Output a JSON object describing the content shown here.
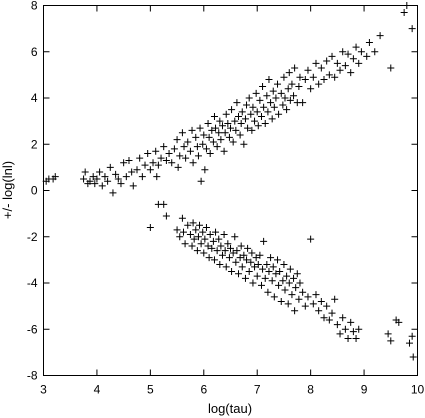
{
  "chart_data": {
    "type": "scatter",
    "title": "",
    "xlabel": "log(tau)",
    "ylabel": "+/- log(lnl)",
    "xlim": [
      3,
      10
    ],
    "ylim": [
      -8,
      8
    ],
    "xticks": [
      "3",
      "4",
      "5",
      "6",
      "7",
      "8",
      "9",
      "10"
    ],
    "yticks": [
      "-8",
      "-6",
      "-4",
      "-2",
      "0",
      "2",
      "4",
      "6",
      "8"
    ],
    "grid": false,
    "marker": "plus",
    "series": [
      {
        "points": [
          [
            3.05,
            0.4
          ],
          [
            3.1,
            0.5
          ],
          [
            3.18,
            0.5
          ],
          [
            3.22,
            0.6
          ],
          [
            3.75,
            0.5
          ],
          [
            3.78,
            0.8
          ],
          [
            3.83,
            0.3
          ],
          [
            3.87,
            0.4
          ],
          [
            3.93,
            0.6
          ],
          [
            3.96,
            0.3
          ],
          [
            4.0,
            0.5
          ],
          [
            4.05,
            0.8
          ],
          [
            4.1,
            0.2
          ],
          [
            4.15,
            0.6
          ],
          [
            4.2,
            0.4
          ],
          [
            4.25,
            1.0
          ],
          [
            4.3,
            -0.1
          ],
          [
            4.35,
            0.7
          ],
          [
            4.4,
            0.5
          ],
          [
            4.45,
            0.3
          ],
          [
            4.5,
            1.2
          ],
          [
            4.55,
            0.6
          ],
          [
            4.6,
            1.3
          ],
          [
            4.65,
            0.8
          ],
          [
            4.68,
            0.2
          ],
          [
            4.75,
            0.9
          ],
          [
            4.8,
            1.4
          ],
          [
            4.85,
            0.6
          ],
          [
            4.9,
            1.1
          ],
          [
            4.95,
            1.6
          ],
          [
            5.0,
            0.9
          ],
          [
            5.05,
            1.2
          ],
          [
            5.1,
            1.7
          ],
          [
            5.12,
            0.6
          ],
          [
            5.15,
            1.1
          ],
          [
            5.2,
            1.4
          ],
          [
            5.25,
            1.9
          ],
          [
            5.3,
            1.3
          ],
          [
            5.35,
            1.6
          ],
          [
            5.4,
            1.2
          ],
          [
            5.45,
            1.8
          ],
          [
            5.5,
            2.2
          ],
          [
            5.52,
            1.0
          ],
          [
            5.55,
            1.5
          ],
          [
            5.6,
            2.5
          ],
          [
            5.63,
            1.9
          ],
          [
            5.66,
            1.4
          ],
          [
            5.7,
            2.1
          ],
          [
            5.75,
            1.7
          ],
          [
            5.78,
            2.6
          ],
          [
            5.8,
            1.2
          ],
          [
            5.85,
            2.3
          ],
          [
            5.88,
            1.9
          ],
          [
            5.9,
            1.5
          ],
          [
            5.93,
            2.7
          ],
          [
            5.95,
            0.4
          ],
          [
            5.98,
            2.0
          ],
          [
            6.0,
            2.4
          ],
          [
            6.02,
            0.9
          ],
          [
            6.05,
            1.8
          ],
          [
            6.08,
            2.9
          ],
          [
            6.1,
            2.3
          ],
          [
            6.12,
            1.6
          ],
          [
            6.15,
            2.6
          ],
          [
            6.18,
            2.1
          ],
          [
            6.2,
            3.2
          ],
          [
            6.22,
            2.7
          ],
          [
            6.25,
            1.9
          ],
          [
            6.28,
            2.5
          ],
          [
            6.3,
            3.0
          ],
          [
            6.32,
            2.2
          ],
          [
            6.35,
            2.8
          ],
          [
            6.38,
            1.7
          ],
          [
            6.4,
            2.5
          ],
          [
            6.42,
            3.3
          ],
          [
            6.45,
            2.9
          ],
          [
            6.48,
            2.3
          ],
          [
            6.5,
            2.7
          ],
          [
            6.52,
            3.5
          ],
          [
            6.55,
            2.1
          ],
          [
            6.58,
            3.0
          ],
          [
            6.6,
            2.6
          ],
          [
            6.62,
            3.8
          ],
          [
            6.65,
            3.2
          ],
          [
            6.68,
            2.4
          ],
          [
            6.7,
            2.9
          ],
          [
            6.72,
            3.4
          ],
          [
            6.75,
            2.0
          ],
          [
            6.78,
            3.1
          ],
          [
            6.8,
            3.7
          ],
          [
            6.82,
            2.7
          ],
          [
            6.85,
            4.0
          ],
          [
            6.88,
            3.3
          ],
          [
            6.9,
            2.6
          ],
          [
            6.92,
            3.6
          ],
          [
            6.95,
            3.0
          ],
          [
            6.98,
            4.2
          ],
          [
            7.0,
            3.4
          ],
          [
            7.02,
            2.8
          ],
          [
            7.05,
            3.9
          ],
          [
            7.08,
            3.2
          ],
          [
            7.1,
            4.5
          ],
          [
            7.12,
            3.6
          ],
          [
            7.15,
            2.9
          ],
          [
            7.18,
            4.1
          ],
          [
            7.2,
            3.4
          ],
          [
            7.22,
            4.8
          ],
          [
            7.25,
            3.8
          ],
          [
            7.28,
            3.1
          ],
          [
            7.3,
            4.3
          ],
          [
            7.32,
            3.6
          ],
          [
            7.35,
            4.0
          ],
          [
            7.38,
            4.6
          ],
          [
            7.4,
            3.3
          ],
          [
            7.45,
            4.2
          ],
          [
            7.48,
            3.7
          ],
          [
            7.5,
            4.9
          ],
          [
            7.52,
            4.0
          ],
          [
            7.55,
            3.5
          ],
          [
            7.58,
            4.4
          ],
          [
            7.6,
            5.1
          ],
          [
            7.62,
            3.9
          ],
          [
            7.65,
            4.6
          ],
          [
            7.68,
            4.1
          ],
          [
            7.7,
            5.3
          ],
          [
            7.75,
            3.8
          ],
          [
            7.78,
            4.5
          ],
          [
            7.8,
            4.9
          ],
          [
            7.85,
            3.8
          ],
          [
            7.9,
            4.8
          ],
          [
            7.95,
            5.2
          ],
          [
            8.0,
            4.4
          ],
          [
            8.05,
            4.9
          ],
          [
            8.1,
            5.5
          ],
          [
            8.15,
            4.6
          ],
          [
            8.2,
            5.3
          ],
          [
            8.25,
            4.8
          ],
          [
            8.3,
            5.6
          ],
          [
            8.35,
            5.0
          ],
          [
            8.4,
            5.8
          ],
          [
            8.45,
            4.9
          ],
          [
            8.5,
            5.5
          ],
          [
            8.55,
            5.2
          ],
          [
            8.6,
            6.0
          ],
          [
            8.65,
            5.4
          ],
          [
            8.7,
            5.9
          ],
          [
            8.75,
            5.1
          ],
          [
            8.8,
            5.7
          ],
          [
            8.85,
            6.2
          ],
          [
            8.9,
            5.5
          ],
          [
            8.95,
            6.0
          ],
          [
            9.05,
            5.8
          ],
          [
            9.1,
            6.4
          ],
          [
            9.2,
            6.0
          ],
          [
            9.3,
            6.7
          ],
          [
            9.5,
            5.3
          ],
          [
            9.75,
            7.7
          ],
          [
            9.8,
            8.0
          ],
          [
            9.9,
            7.0
          ]
        ]
      },
      {
        "points": [
          [
            5.0,
            -1.6
          ],
          [
            5.15,
            -0.6
          ],
          [
            5.25,
            -0.6
          ],
          [
            5.3,
            -1.1
          ],
          [
            5.5,
            -1.7
          ],
          [
            5.55,
            -2.0
          ],
          [
            5.6,
            -1.2
          ],
          [
            5.62,
            -1.8
          ],
          [
            5.65,
            -2.3
          ],
          [
            5.7,
            -1.5
          ],
          [
            5.75,
            -1.9
          ],
          [
            5.78,
            -2.4
          ],
          [
            5.8,
            -1.4
          ],
          [
            5.82,
            -2.1
          ],
          [
            5.85,
            -1.7
          ],
          [
            5.88,
            -2.6
          ],
          [
            5.9,
            -2.0
          ],
          [
            5.92,
            -1.5
          ],
          [
            5.95,
            -2.3
          ],
          [
            5.98,
            -1.8
          ],
          [
            6.0,
            -2.7
          ],
          [
            6.02,
            -2.1
          ],
          [
            6.05,
            -1.6
          ],
          [
            6.08,
            -2.4
          ],
          [
            6.1,
            -2.9
          ],
          [
            6.12,
            -1.9
          ],
          [
            6.15,
            -2.5
          ],
          [
            6.18,
            -2.2
          ],
          [
            6.2,
            -3.0
          ],
          [
            6.22,
            -1.8
          ],
          [
            6.25,
            -2.6
          ],
          [
            6.28,
            -2.1
          ],
          [
            6.3,
            -3.2
          ],
          [
            6.32,
            -2.4
          ],
          [
            6.35,
            -2.8
          ],
          [
            6.38,
            -1.9
          ],
          [
            6.4,
            -2.6
          ],
          [
            6.42,
            -3.3
          ],
          [
            6.45,
            -2.3
          ],
          [
            6.48,
            -2.9
          ],
          [
            6.5,
            -2.5
          ],
          [
            6.52,
            -3.5
          ],
          [
            6.55,
            -2.7
          ],
          [
            6.58,
            -2.0
          ],
          [
            6.6,
            -3.1
          ],
          [
            6.62,
            -2.6
          ],
          [
            6.65,
            -3.6
          ],
          [
            6.68,
            -2.9
          ],
          [
            6.7,
            -2.4
          ],
          [
            6.72,
            -3.3
          ],
          [
            6.75,
            -2.8
          ],
          [
            6.78,
            -3.8
          ],
          [
            6.8,
            -3.0
          ],
          [
            6.82,
            -2.5
          ],
          [
            6.85,
            -3.5
          ],
          [
            6.88,
            -3.1
          ],
          [
            6.9,
            -2.7
          ],
          [
            6.92,
            -4.0
          ],
          [
            6.95,
            -3.3
          ],
          [
            6.98,
            -2.9
          ],
          [
            7.0,
            -3.7
          ],
          [
            7.02,
            -3.2
          ],
          [
            7.05,
            -2.8
          ],
          [
            7.08,
            -4.1
          ],
          [
            7.1,
            -3.4
          ],
          [
            7.12,
            -2.2
          ],
          [
            7.15,
            -3.8
          ],
          [
            7.18,
            -3.2
          ],
          [
            7.2,
            -4.4
          ],
          [
            7.22,
            -3.5
          ],
          [
            7.25,
            -2.9
          ],
          [
            7.28,
            -3.9
          ],
          [
            7.3,
            -3.3
          ],
          [
            7.32,
            -4.6
          ],
          [
            7.35,
            -3.6
          ],
          [
            7.38,
            -3.0
          ],
          [
            7.4,
            -4.1
          ],
          [
            7.42,
            -3.5
          ],
          [
            7.45,
            -4.8
          ],
          [
            7.48,
            -3.9
          ],
          [
            7.5,
            -3.2
          ],
          [
            7.52,
            -4.3
          ],
          [
            7.55,
            -3.7
          ],
          [
            7.58,
            -4.9
          ],
          [
            7.6,
            -4.0
          ],
          [
            7.62,
            -3.4
          ],
          [
            7.65,
            -4.5
          ],
          [
            7.68,
            -3.8
          ],
          [
            7.7,
            -5.2
          ],
          [
            7.72,
            -4.2
          ],
          [
            7.75,
            -3.6
          ],
          [
            7.78,
            -4.7
          ],
          [
            7.8,
            -4.0
          ],
          [
            7.85,
            -4.4
          ],
          [
            7.9,
            -5.0
          ],
          [
            7.95,
            -4.6
          ],
          [
            8.0,
            -2.1
          ],
          [
            8.05,
            -4.9
          ],
          [
            8.1,
            -4.5
          ],
          [
            8.15,
            -5.2
          ],
          [
            8.2,
            -4.8
          ],
          [
            8.25,
            -5.5
          ],
          [
            8.3,
            -5.0
          ],
          [
            8.35,
            -5.6
          ],
          [
            8.4,
            -5.3
          ],
          [
            8.45,
            -4.7
          ],
          [
            8.5,
            -5.8
          ],
          [
            8.55,
            -6.2
          ],
          [
            8.6,
            -5.5
          ],
          [
            8.65,
            -6.0
          ],
          [
            8.7,
            -6.4
          ],
          [
            8.75,
            -5.7
          ],
          [
            8.8,
            -6.1
          ],
          [
            8.85,
            -6.4
          ],
          [
            8.9,
            -6.0
          ],
          [
            9.45,
            -6.2
          ],
          [
            9.5,
            -6.5
          ],
          [
            9.6,
            -5.6
          ],
          [
            9.65,
            -5.7
          ],
          [
            9.85,
            -6.6
          ],
          [
            9.9,
            -6.3
          ],
          [
            9.92,
            -7.2
          ]
        ]
      }
    ]
  }
}
